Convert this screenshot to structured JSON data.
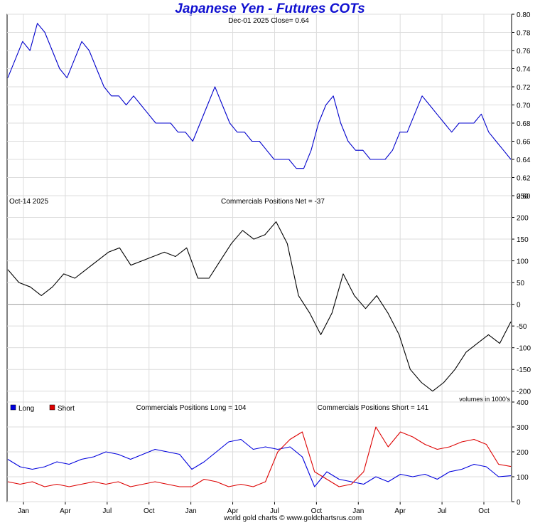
{
  "title": "Japanese Yen - Futures COTs",
  "footer": "world gold charts © www.goldchartsrus.com",
  "x_axis": {
    "tick_labels": [
      "Jan",
      "Apr",
      "Jul",
      "Oct",
      "Jan",
      "Apr",
      "Jul",
      "Oct",
      "Jan",
      "Apr",
      "Jul",
      "Oct"
    ]
  },
  "colors": {
    "price": "#0000cc",
    "net": "#000000",
    "long": "#0000dd",
    "short": "#dd0000",
    "title": "#1010d0"
  },
  "chart_data": [
    {
      "type": "line",
      "panel": "price",
      "header": "Dec-01  2025   Close= 0.64",
      "ylim": [
        0.6,
        0.8
      ],
      "yticks": [
        "0.80",
        "0.78",
        "0.76",
        "0.74",
        "0.72",
        "0.70",
        "0.68",
        "0.66",
        "0.64",
        "0.62",
        "0.60"
      ],
      "grid": true,
      "series": [
        {
          "values": [
            0.73,
            0.75,
            0.77,
            0.76,
            0.79,
            0.78,
            0.76,
            0.74,
            0.73,
            0.75,
            0.77,
            0.76,
            0.74,
            0.72,
            0.71,
            0.71,
            0.7,
            0.71,
            0.7,
            0.69,
            0.68,
            0.68,
            0.68,
            0.67,
            0.67,
            0.66,
            0.68,
            0.7,
            0.72,
            0.7,
            0.68,
            0.67,
            0.67,
            0.66,
            0.66,
            0.65,
            0.64,
            0.64,
            0.64,
            0.63,
            0.63,
            0.65,
            0.68,
            0.7,
            0.71,
            0.68,
            0.66,
            0.65,
            0.65,
            0.64,
            0.64,
            0.64,
            0.65,
            0.67,
            0.67,
            0.69,
            0.71,
            0.7,
            0.69,
            0.68,
            0.67,
            0.68,
            0.68,
            0.68,
            0.69,
            0.67,
            0.66,
            0.65,
            0.64
          ]
        }
      ]
    },
    {
      "type": "line",
      "panel": "net",
      "header_left": "Oct-14  2025",
      "header": "Commercials Positions Net = -37",
      "note": "volumes in 1000's",
      "ylim": [
        -225,
        250
      ],
      "yticks": [
        "250",
        "200",
        "150",
        "100",
        "50",
        "0",
        "-50",
        "-100",
        "-150",
        "-200"
      ],
      "grid": true,
      "series": [
        {
          "values": [
            80,
            50,
            40,
            20,
            40,
            70,
            60,
            80,
            100,
            120,
            130,
            90,
            100,
            110,
            120,
            110,
            130,
            60,
            60,
            100,
            140,
            170,
            150,
            160,
            190,
            140,
            20,
            -20,
            -70,
            -20,
            70,
            20,
            -10,
            20,
            -20,
            -70,
            -150,
            -180,
            -200,
            -180,
            -150,
            -110,
            -90,
            -70,
            -90,
            -40
          ]
        }
      ]
    },
    {
      "type": "line",
      "panel": "long-short",
      "ylim": [
        0,
        400
      ],
      "yticks": [
        "400",
        "300",
        "200",
        "100",
        "0"
      ],
      "grid": true,
      "legend": {
        "placement": "top-left",
        "entries": [
          "Long",
          "Short"
        ]
      },
      "header_long": "Commercials Positions Long = 104",
      "header_short": "Commercials Positions Short = 141",
      "series": [
        {
          "name": "Long",
          "values": [
            170,
            140,
            130,
            140,
            160,
            150,
            170,
            180,
            200,
            190,
            170,
            190,
            210,
            200,
            190,
            130,
            160,
            200,
            240,
            250,
            210,
            220,
            210,
            220,
            180,
            60,
            120,
            90,
            80,
            70,
            100,
            80,
            110,
            100,
            110,
            90,
            120,
            130,
            150,
            140,
            100,
            104
          ]
        },
        {
          "name": "Short",
          "values": [
            80,
            70,
            80,
            60,
            70,
            60,
            70,
            80,
            70,
            80,
            60,
            70,
            80,
            70,
            60,
            60,
            90,
            80,
            60,
            70,
            60,
            80,
            200,
            250,
            280,
            120,
            90,
            60,
            70,
            120,
            300,
            220,
            280,
            260,
            230,
            210,
            220,
            240,
            250,
            230,
            150,
            141
          ]
        }
      ]
    }
  ]
}
